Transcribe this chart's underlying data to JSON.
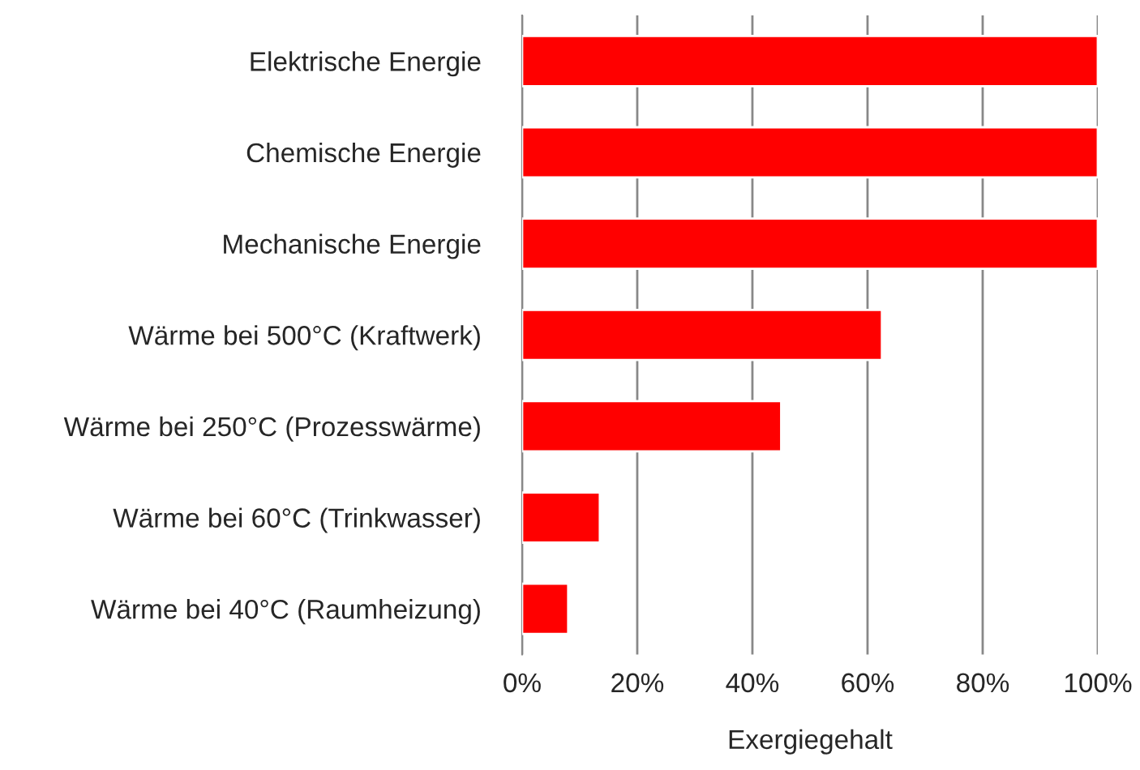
{
  "chart_data": {
    "type": "bar",
    "orientation": "horizontal",
    "xlabel": "Exergiegehalt",
    "categories": [
      "Elektrische Energie",
      "Chemische Energie",
      "Mechanische Energie",
      "Wärme bei 500°C (Kraftwerk)",
      "Wärme bei 250°C (Prozesswärme)",
      "Wärme bei 60°C (Trinkwasser)",
      "Wärme bei 40°C (Raumheizung)"
    ],
    "values": [
      100,
      100,
      100,
      62.5,
      45,
      13.5,
      8
    ],
    "color": "#ff0000",
    "xlim": [
      0,
      100
    ],
    "xticks": [
      {
        "value": 0,
        "label": "0%"
      },
      {
        "value": 20,
        "label": "20%"
      },
      {
        "value": 40,
        "label": "40%"
      },
      {
        "value": 60,
        "label": "60%"
      },
      {
        "value": 80,
        "label": "80%"
      },
      {
        "value": 100,
        "label": "100%"
      }
    ],
    "grid": "x"
  }
}
